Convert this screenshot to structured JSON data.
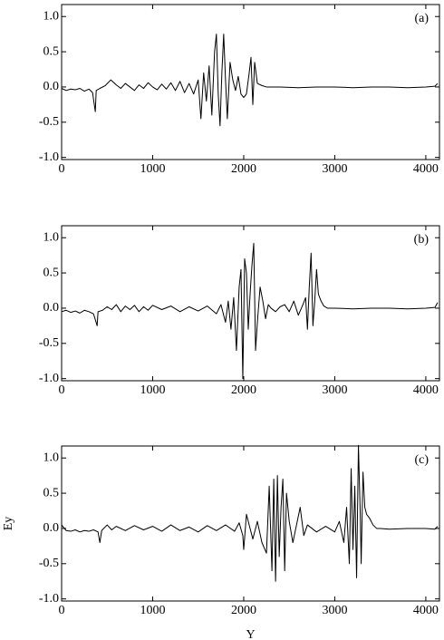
{
  "chart_data": [
    {
      "type": "line",
      "annotation": "(a)",
      "color": "#000000",
      "x": [
        0,
        50,
        100,
        150,
        200,
        250,
        300,
        340,
        370,
        380,
        420,
        480,
        540,
        600,
        650,
        700,
        750,
        800,
        850,
        900,
        950,
        1000,
        1050,
        1100,
        1150,
        1200,
        1250,
        1300,
        1350,
        1400,
        1450,
        1500,
        1530,
        1560,
        1590,
        1620,
        1650,
        1680,
        1700,
        1720,
        1740,
        1760,
        1780,
        1800,
        1820,
        1850,
        1880,
        1910,
        1940,
        1970,
        2000,
        2030,
        2060,
        2080,
        2100,
        2120,
        2150,
        2200,
        2250,
        2400,
        2600,
        2800,
        3000,
        3200,
        3400,
        3600,
        3800,
        4000,
        4100,
        4130
      ],
      "values": [
        -0.02,
        -0.05,
        -0.03,
        -0.04,
        -0.02,
        -0.06,
        -0.03,
        -0.08,
        -0.35,
        -0.05,
        -0.02,
        0.02,
        0.1,
        0.03,
        -0.02,
        0.05,
        0.0,
        -0.05,
        0.03,
        -0.02,
        0.06,
        0.0,
        -0.04,
        0.04,
        -0.03,
        0.06,
        -0.05,
        0.08,
        -0.08,
        0.05,
        -0.1,
        0.1,
        -0.45,
        0.2,
        -0.2,
        0.3,
        -0.4,
        0.5,
        0.75,
        -0.1,
        -0.55,
        0.2,
        0.75,
        0.1,
        -0.45,
        0.35,
        0.1,
        -0.05,
        0.15,
        -0.1,
        -0.15,
        -0.1,
        0.2,
        0.42,
        -0.25,
        0.35,
        0.05,
        0.02,
        0.0,
        0.0,
        -0.01,
        0.0,
        0.0,
        -0.01,
        0.0,
        0.0,
        -0.01,
        0.0,
        0.01,
        0.05
      ],
      "xlim": [
        0,
        4150
      ],
      "ylim": [
        -1.03,
        1.17
      ],
      "xticks": [
        0,
        1000,
        2000,
        3000,
        4000
      ],
      "yticks": [
        {
          "value": -1.0,
          "label": "-1.0"
        },
        {
          "value": -0.5,
          "label": "-0.5"
        },
        {
          "value": 0.0,
          "label": "0.0"
        },
        {
          "value": 0.5,
          "label": "0.5"
        },
        {
          "value": 1.0,
          "label": "1.0"
        }
      ]
    },
    {
      "type": "line",
      "annotation": "(b)",
      "color": "#000000",
      "x": [
        0,
        50,
        100,
        150,
        200,
        250,
        300,
        350,
        390,
        400,
        450,
        500,
        550,
        600,
        650,
        700,
        750,
        800,
        850,
        900,
        950,
        1000,
        1100,
        1200,
        1300,
        1400,
        1500,
        1600,
        1700,
        1750,
        1800,
        1830,
        1860,
        1890,
        1920,
        1950,
        1970,
        1990,
        2010,
        2030,
        2050,
        2070,
        2090,
        2110,
        2130,
        2150,
        2180,
        2210,
        2240,
        2270,
        2300,
        2350,
        2400,
        2450,
        2500,
        2550,
        2600,
        2650,
        2680,
        2700,
        2720,
        2740,
        2760,
        2780,
        2800,
        2820,
        2850,
        2880,
        2920,
        2960,
        3000,
        3200,
        3400,
        3600,
        3800,
        4000,
        4100,
        4130
      ],
      "values": [
        -0.05,
        -0.03,
        -0.06,
        -0.04,
        -0.07,
        -0.03,
        -0.05,
        -0.08,
        -0.25,
        -0.05,
        -0.03,
        0.02,
        -0.02,
        0.05,
        -0.05,
        0.03,
        -0.02,
        0.04,
        -0.05,
        0.02,
        -0.03,
        0.04,
        -0.02,
        0.03,
        -0.05,
        0.02,
        -0.04,
        0.03,
        -0.08,
        0.05,
        -0.2,
        0.1,
        -0.3,
        0.15,
        -0.6,
        0.3,
        0.55,
        -1.0,
        0.7,
        0.5,
        -0.3,
        0.2,
        0.6,
        0.92,
        -0.6,
        -0.2,
        0.3,
        0.1,
        -0.15,
        0.05,
        0.0,
        -0.05,
        0.02,
        0.05,
        -0.05,
        0.1,
        -0.1,
        0.05,
        0.15,
        -0.3,
        0.3,
        0.78,
        -0.25,
        0.1,
        0.55,
        0.2,
        0.1,
        0.03,
        0.0,
        0.0,
        0.0,
        -0.01,
        0.0,
        0.0,
        -0.01,
        0.0,
        0.01,
        0.08
      ],
      "xlim": [
        0,
        4150
      ],
      "ylim": [
        -1.03,
        1.17
      ],
      "xticks": [
        0,
        1000,
        2000,
        3000,
        4000
      ],
      "yticks": [
        {
          "value": -1.0,
          "label": "-1.0"
        },
        {
          "value": -0.5,
          "label": "-0.5"
        },
        {
          "value": 0.0,
          "label": "0.0"
        },
        {
          "value": 0.5,
          "label": "0.5"
        },
        {
          "value": 1.0,
          "label": "1.0"
        }
      ]
    },
    {
      "type": "line",
      "annotation": "(c)",
      "x_label": "Y",
      "y_label": "Ey",
      "color": "#000000",
      "x": [
        0,
        50,
        100,
        150,
        200,
        250,
        300,
        350,
        400,
        420,
        440,
        500,
        550,
        600,
        700,
        800,
        900,
        1000,
        1100,
        1200,
        1300,
        1400,
        1500,
        1600,
        1700,
        1800,
        1900,
        1950,
        1990,
        2000,
        2030,
        2100,
        2150,
        2200,
        2250,
        2280,
        2310,
        2330,
        2350,
        2370,
        2390,
        2410,
        2430,
        2450,
        2470,
        2500,
        2540,
        2580,
        2620,
        2660,
        2700,
        2800,
        2900,
        3000,
        3050,
        3100,
        3130,
        3160,
        3180,
        3200,
        3220,
        3240,
        3260,
        3280,
        3290,
        3310,
        3330,
        3350,
        3380,
        3420,
        3460,
        3500,
        3600,
        3800,
        4000,
        4100,
        4130
      ],
      "values": [
        0.05,
        -0.03,
        -0.04,
        -0.02,
        -0.05,
        -0.03,
        -0.04,
        -0.02,
        -0.05,
        -0.2,
        -0.03,
        0.05,
        -0.02,
        0.03,
        -0.03,
        0.04,
        -0.02,
        0.03,
        -0.04,
        0.05,
        -0.03,
        0.02,
        -0.05,
        0.04,
        -0.03,
        0.05,
        -0.04,
        0.08,
        -0.1,
        -0.3,
        0.2,
        -0.15,
        0.1,
        -0.2,
        -0.35,
        0.6,
        -0.6,
        0.7,
        -0.75,
        0.75,
        -0.4,
        0.3,
        0.7,
        -0.6,
        0.5,
        0.1,
        -0.2,
        0.05,
        0.3,
        -0.1,
        0.05,
        -0.05,
        0.03,
        -0.05,
        0.1,
        -0.2,
        0.3,
        -0.5,
        0.85,
        -0.3,
        0.6,
        -0.7,
        1.18,
        0.2,
        -0.5,
        0.8,
        0.3,
        0.2,
        0.15,
        0.05,
        0.0,
        0.0,
        -0.01,
        0.0,
        0.0,
        -0.01,
        0.03
      ],
      "xlim": [
        0,
        4150
      ],
      "ylim": [
        -1.03,
        1.17
      ],
      "xticks": [
        0,
        1000,
        2000,
        3000,
        4000
      ],
      "yticks": [
        {
          "value": -1.0,
          "label": "-1.0"
        },
        {
          "value": -0.5,
          "label": "-0.5"
        },
        {
          "value": 0.0,
          "label": "0.0"
        },
        {
          "value": 0.5,
          "label": "0.5"
        },
        {
          "value": 1.0,
          "label": "1.0"
        }
      ]
    }
  ]
}
